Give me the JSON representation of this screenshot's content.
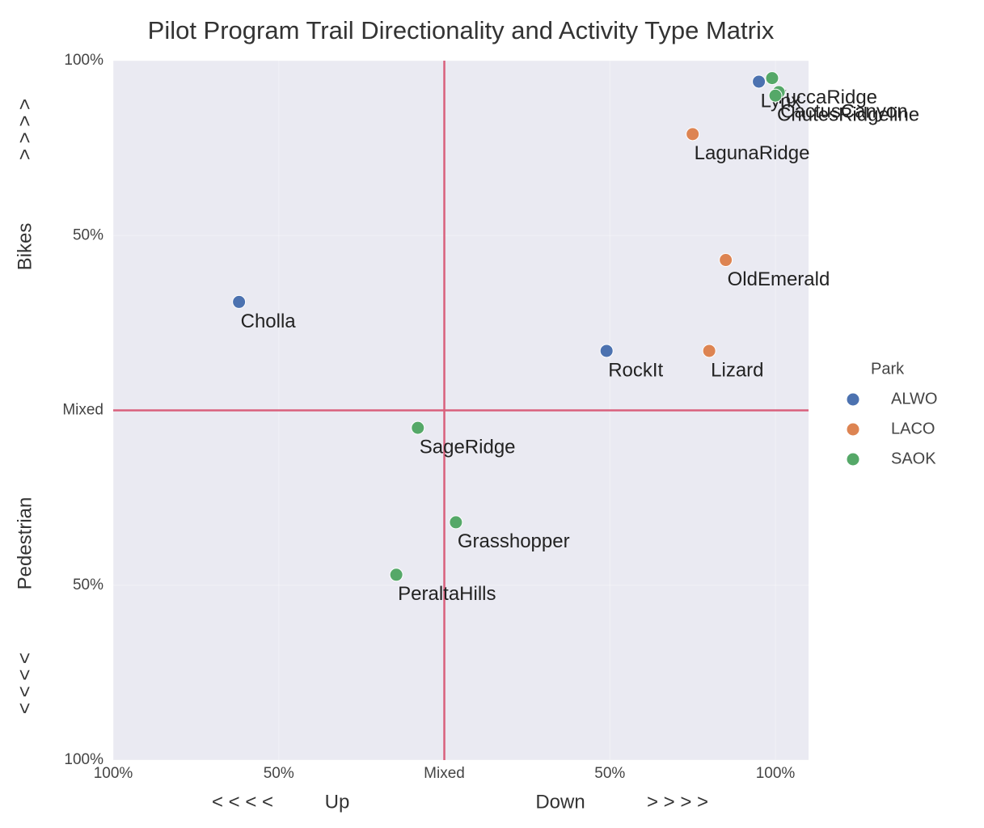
{
  "chart_data": {
    "type": "scatter",
    "title": "Pilot Program Trail Directionality and Activity Type Matrix",
    "xlabel": [
      "< < < <",
      "Up",
      "Down",
      "> > > >"
    ],
    "ylabel": [
      "< < < <",
      "Pedestrian",
      "Bikes",
      "> > > >"
    ],
    "xlim": [
      -100,
      110
    ],
    "ylim": [
      -100,
      100
    ],
    "xticks": [
      {
        "value": -100,
        "label": "100%"
      },
      {
        "value": -50,
        "label": "50%"
      },
      {
        "value": 0,
        "label": "Mixed"
      },
      {
        "value": 50,
        "label": "50%"
      },
      {
        "value": 100,
        "label": "100%"
      }
    ],
    "yticks": [
      {
        "value": -100,
        "label": "100%"
      },
      {
        "value": -50,
        "label": "50%"
      },
      {
        "value": 0,
        "label": "Mixed"
      },
      {
        "value": 50,
        "label": "50%"
      },
      {
        "value": 100,
        "label": "100%"
      }
    ],
    "reference_lines": {
      "x": 0,
      "y": 0,
      "color": "#d9607c"
    },
    "legend_title": "Park",
    "legend": "right",
    "series": [
      {
        "name": "ALWO",
        "color": "#4c72b0",
        "labels": [
          "Cholla",
          "RockIt",
          "Lynx"
        ],
        "x": [
          -62,
          49,
          95
        ],
        "values": [
          31,
          17,
          94
        ]
      },
      {
        "name": "LACO",
        "color": "#dd8452",
        "labels": [
          "Lizard",
          "OldEmerald",
          "LagunaRidge"
        ],
        "x": [
          80,
          85,
          75
        ],
        "values": [
          17,
          43,
          79
        ]
      },
      {
        "name": "SAOK",
        "color": "#55a868",
        "labels": [
          "YuccaRidge",
          "CactusCanyon",
          "ChutesRidgeline",
          "SageRidge",
          "Grasshopper",
          "PeraltaHills"
        ],
        "x": [
          99,
          101,
          100,
          -8,
          3.5,
          -14.5
        ],
        "values": [
          95,
          91,
          90,
          -5,
          -32,
          -47
        ]
      }
    ]
  }
}
